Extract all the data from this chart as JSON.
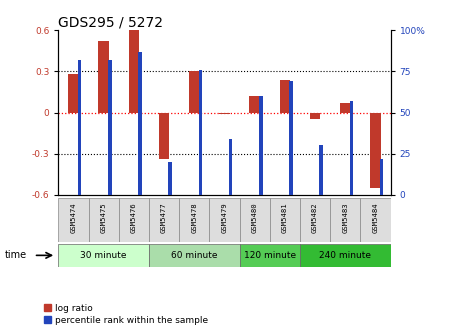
{
  "title": "GDS295 / 5272",
  "samples": [
    "GSM5474",
    "GSM5475",
    "GSM5476",
    "GSM5477",
    "GSM5478",
    "GSM5479",
    "GSM5480",
    "GSM5481",
    "GSM5482",
    "GSM5483",
    "GSM5484"
  ],
  "log_ratio": [
    0.28,
    0.52,
    0.62,
    -0.34,
    0.3,
    -0.01,
    0.12,
    0.24,
    -0.05,
    0.07,
    -0.55
  ],
  "percentile": [
    82,
    82,
    87,
    20,
    76,
    34,
    60,
    69,
    30,
    57,
    22
  ],
  "bar_color_red": "#c0392b",
  "bar_color_blue": "#2244bb",
  "groups_def": [
    [
      0,
      2,
      "30 minute",
      "#ccffcc"
    ],
    [
      3,
      5,
      "60 minute",
      "#aaddaa"
    ],
    [
      6,
      7,
      "120 minute",
      "#55cc55"
    ],
    [
      8,
      10,
      "240 minute",
      "#33bb33"
    ]
  ],
  "time_label": "time",
  "legend_labels": [
    "log ratio",
    "percentile rank within the sample"
  ]
}
